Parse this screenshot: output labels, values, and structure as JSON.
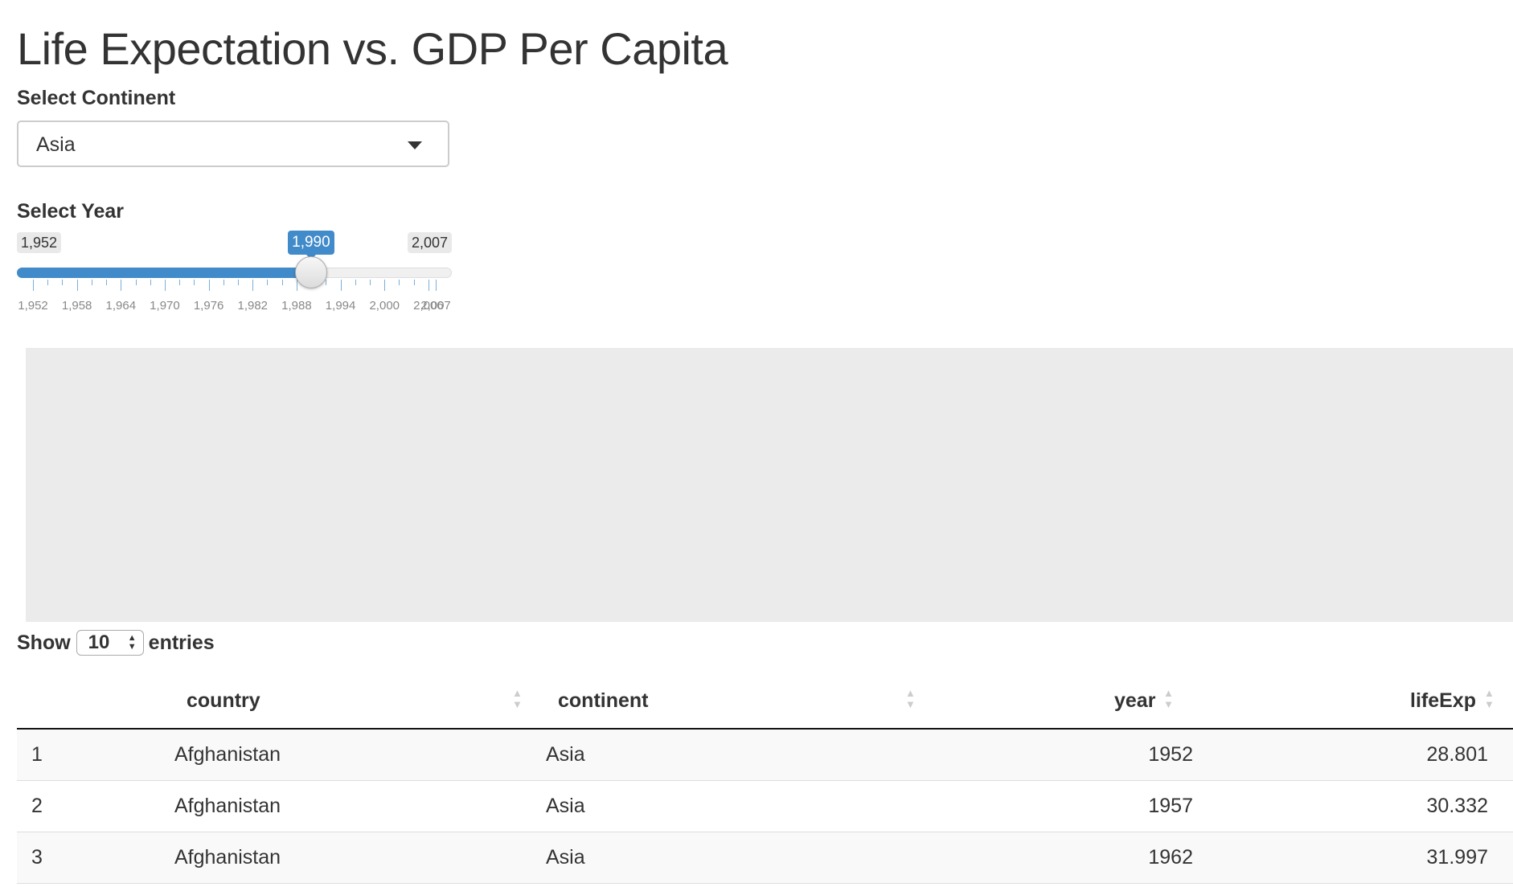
{
  "page": {
    "title": "Life Expectation vs. GDP Per Capita"
  },
  "continent_select": {
    "label": "Select Continent",
    "value": "Asia"
  },
  "year_slider": {
    "label": "Select Year",
    "min": 1952,
    "max": 2007,
    "value": 1990,
    "min_label": "1,952",
    "max_label": "2,007",
    "value_label": "1,990",
    "accent_color": "#428bca",
    "tick_labels": [
      "1,952",
      "1,958",
      "1,964",
      "1,970",
      "1,976",
      "1,982",
      "1,988",
      "1,994",
      "2,000",
      "2,006",
      "2,007"
    ]
  },
  "table": {
    "length_menu": {
      "prefix": "Show",
      "value": "10",
      "suffix": "entries"
    },
    "columns": [
      {
        "key": "index",
        "label": ""
      },
      {
        "key": "country",
        "label": "country"
      },
      {
        "key": "continent",
        "label": "continent"
      },
      {
        "key": "year",
        "label": "year"
      },
      {
        "key": "lifeExp",
        "label": "lifeExp"
      }
    ],
    "rows": [
      {
        "index": "1",
        "country": "Afghanistan",
        "continent": "Asia",
        "year": "1952",
        "lifeExp": "28.801"
      },
      {
        "index": "2",
        "country": "Afghanistan",
        "continent": "Asia",
        "year": "1957",
        "lifeExp": "30.332"
      },
      {
        "index": "3",
        "country": "Afghanistan",
        "continent": "Asia",
        "year": "1962",
        "lifeExp": "31.997"
      }
    ]
  },
  "icons": {
    "dropdown": "caret-down-icon",
    "sort": "sort-both-icon",
    "spinner": "spinner-arrows-icon"
  }
}
